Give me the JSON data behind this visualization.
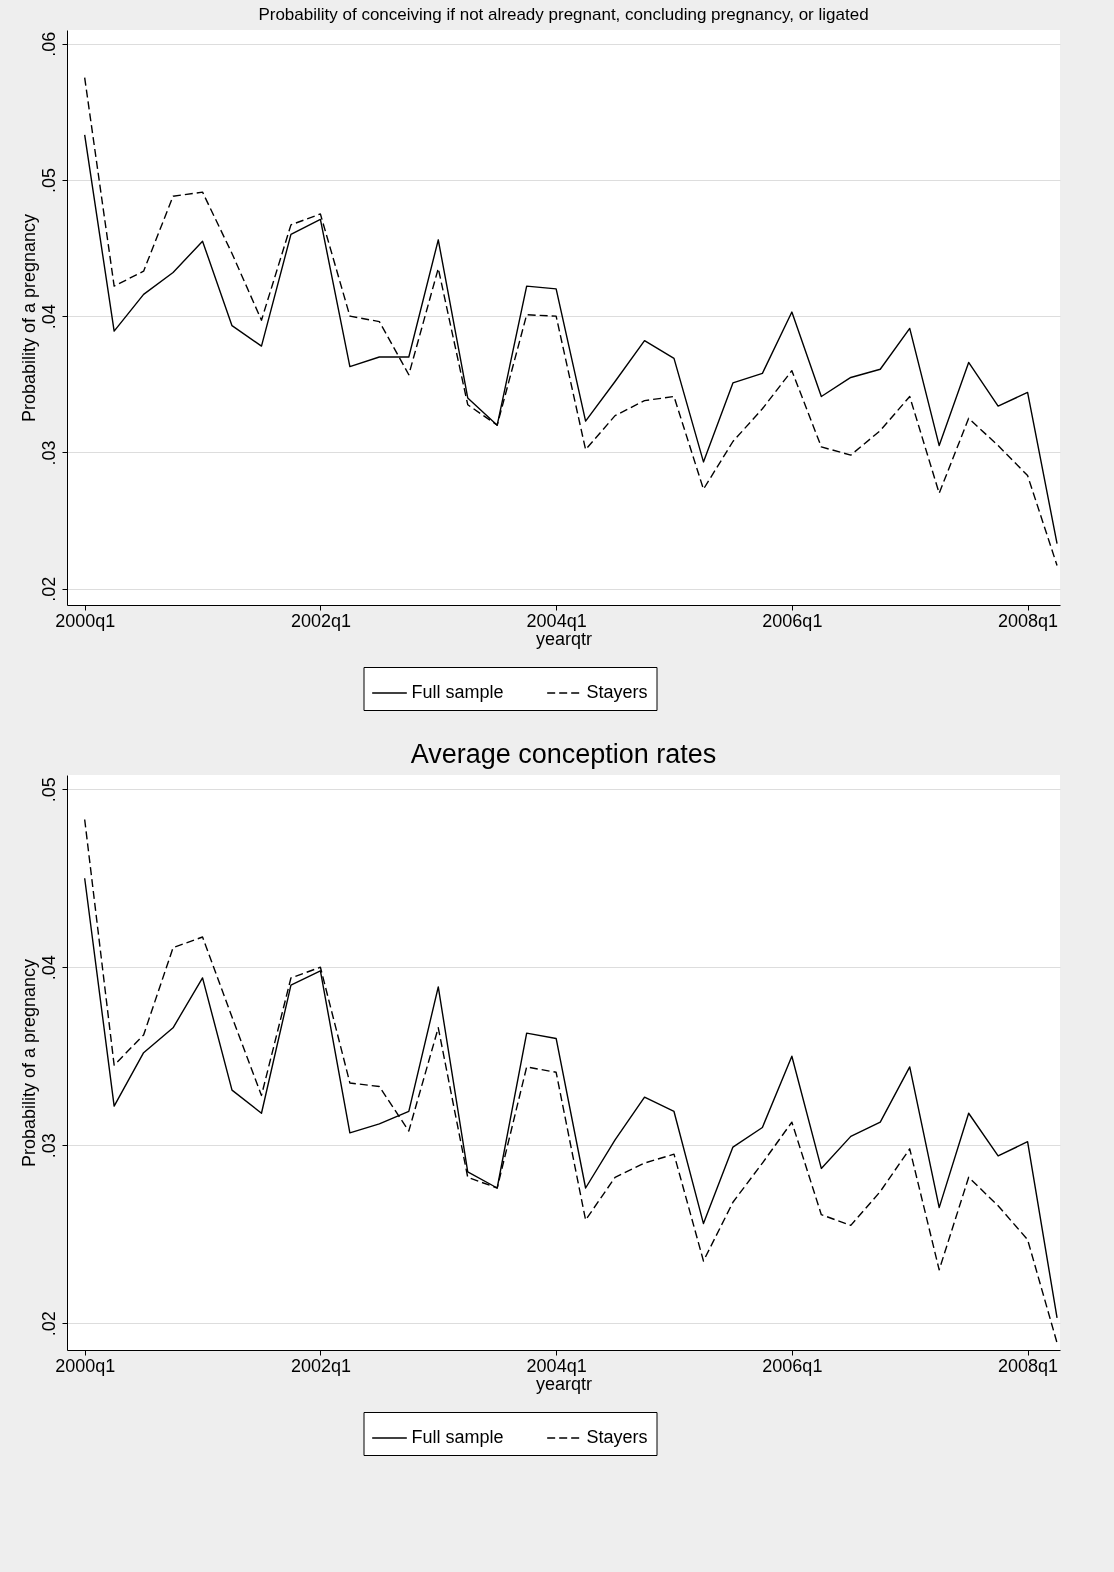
{
  "chart_data": [
    {
      "type": "line",
      "title": "Probability of conceiving if not already pregnant, concluding pregnancy, or ligated",
      "xlabel": "yearqtr",
      "ylabel": "Probability of a pregnancy",
      "categories": [
        "2000q1",
        null,
        null,
        null,
        null,
        null,
        null,
        null,
        "2002q1",
        null,
        null,
        null,
        null,
        null,
        null,
        null,
        "2004q1",
        null,
        null,
        null,
        null,
        null,
        null,
        null,
        "2006q1",
        null,
        null,
        null,
        null,
        null,
        null,
        null,
        "2008q1",
        null
      ],
      "series": [
        {
          "name": "Full sample",
          "color": "#000000",
          "line_style": "solid",
          "values": [
            0.0533,
            0.0389,
            0.0416,
            0.0432,
            0.0455,
            0.0393,
            0.0378,
            0.046,
            0.0471,
            0.0363,
            0.037,
            0.037,
            0.0456,
            0.034,
            0.032,
            0.0422,
            0.042,
            0.0323,
            0.0352,
            0.0382,
            0.0369,
            0.0293,
            0.0351,
            0.0358,
            0.0403,
            0.0341,
            0.0355,
            0.0361,
            0.0391,
            0.0305,
            0.0366,
            0.0334,
            0.0344,
            0.0233
          ]
        },
        {
          "name": "Stayers",
          "color": "#000000",
          "line_style": "dashed",
          "values": [
            0.0575,
            0.0422,
            0.0433,
            0.0488,
            0.0491,
            0.0446,
            0.0397,
            0.0467,
            0.0475,
            0.04,
            0.0396,
            0.0357,
            0.0435,
            0.0335,
            0.032,
            0.0401,
            0.04,
            0.0302,
            0.0327,
            0.0338,
            0.0341,
            0.0273,
            0.0308,
            0.0332,
            0.036,
            0.0304,
            0.0298,
            0.0316,
            0.0341,
            0.027,
            0.0325,
            0.0305,
            0.0283,
            0.0217
          ]
        }
      ],
      "ylim": [
        0.0188,
        0.061
      ],
      "yticks": [
        {
          "value": 0.02,
          "label": ".02"
        },
        {
          "value": 0.03,
          "label": ".03"
        },
        {
          "value": 0.04,
          "label": ".04"
        },
        {
          "value": 0.05,
          "label": ".05"
        },
        {
          "value": 0.06,
          "label": ".06"
        }
      ],
      "grid": "y",
      "legend": "bottom"
    },
    {
      "type": "line",
      "title": "Average conception rates",
      "xlabel": "yearqtr",
      "ylabel": "Probability of a pregnancy",
      "categories": [
        "2000q1",
        null,
        null,
        null,
        null,
        null,
        null,
        null,
        "2002q1",
        null,
        null,
        null,
        null,
        null,
        null,
        null,
        "2004q1",
        null,
        null,
        null,
        null,
        null,
        null,
        null,
        "2006q1",
        null,
        null,
        null,
        null,
        null,
        null,
        null,
        "2008q1",
        null
      ],
      "series": [
        {
          "name": "Full sample",
          "color": "#000000",
          "line_style": "solid",
          "values": [
            0.045,
            0.0322,
            0.0352,
            0.0366,
            0.0394,
            0.0331,
            0.0318,
            0.039,
            0.0398,
            0.0307,
            0.0312,
            0.0319,
            0.0389,
            0.0285,
            0.0276,
            0.0363,
            0.036,
            0.0276,
            0.0303,
            0.0327,
            0.0319,
            0.0256,
            0.0299,
            0.031,
            0.035,
            0.0287,
            0.0305,
            0.0313,
            0.0344,
            0.0265,
            0.0318,
            0.0294,
            0.0302,
            0.0203
          ]
        },
        {
          "name": "Stayers",
          "color": "#000000",
          "line_style": "dashed",
          "values": [
            0.0483,
            0.0345,
            0.0362,
            0.0411,
            0.0417,
            0.0372,
            0.0328,
            0.0394,
            0.04,
            0.0335,
            0.0333,
            0.0308,
            0.0366,
            0.0282,
            0.0276,
            0.0344,
            0.0341,
            0.0258,
            0.0282,
            0.029,
            0.0295,
            0.0235,
            0.0268,
            0.029,
            0.0313,
            0.0261,
            0.0255,
            0.0274,
            0.0298,
            0.023,
            0.0282,
            0.0266,
            0.0247,
            0.0189
          ]
        }
      ],
      "ylim": [
        0.0185,
        0.0508
      ],
      "yticks": [
        {
          "value": 0.02,
          "label": ".02"
        },
        {
          "value": 0.03,
          "label": ".03"
        },
        {
          "value": 0.04,
          "label": ".04"
        },
        {
          "value": 0.05,
          "label": ".05"
        }
      ],
      "grid": "y",
      "legend": "bottom"
    }
  ]
}
